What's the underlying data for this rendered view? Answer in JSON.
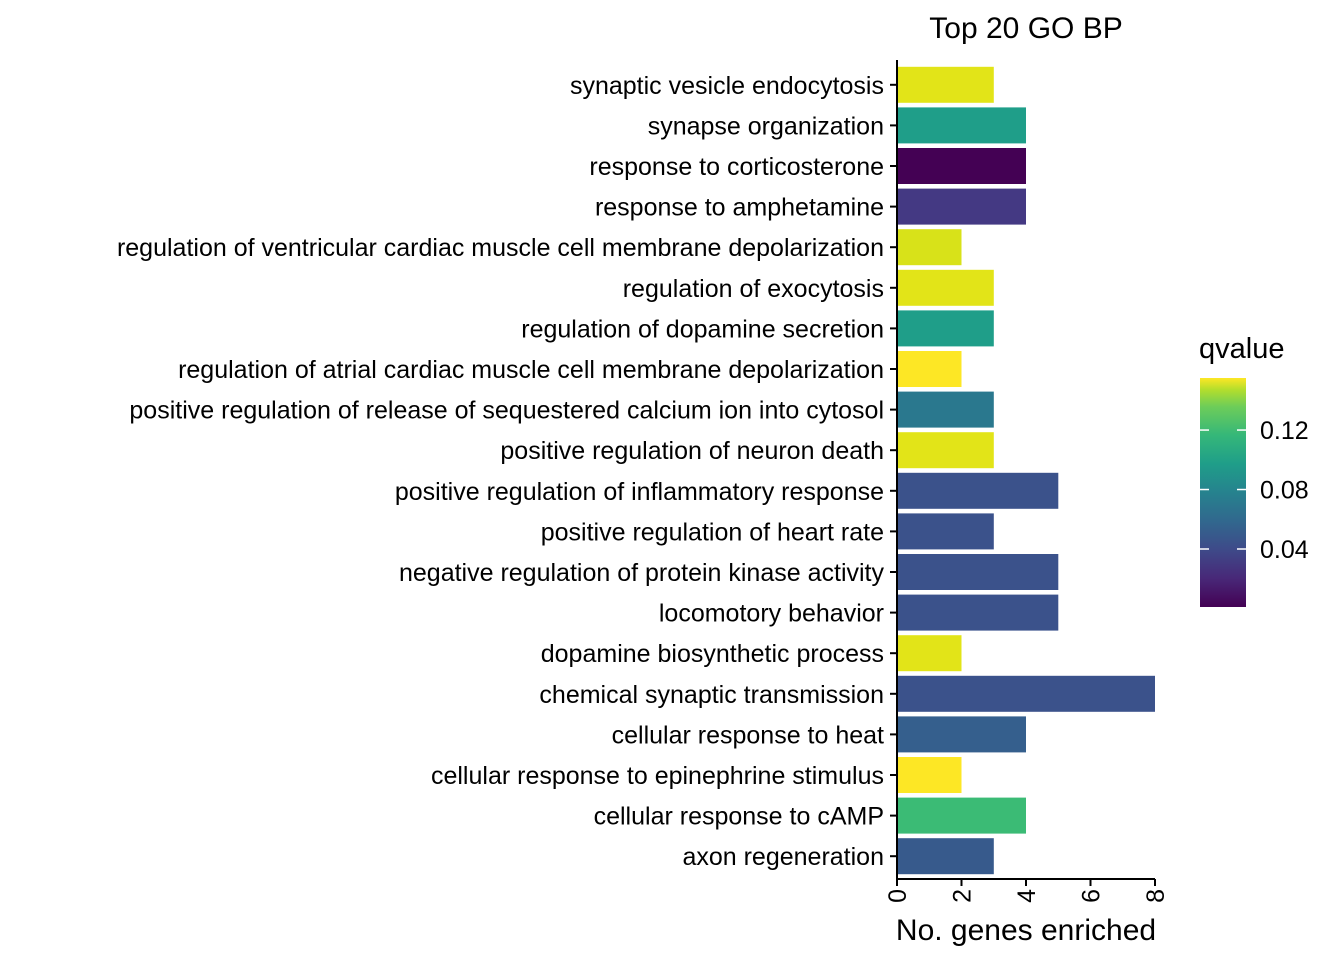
{
  "chart_data": {
    "type": "bar",
    "orientation": "horizontal",
    "title": "Top 20 GO BP",
    "xlabel": "No. genes enriched",
    "ylabel": "",
    "xlim": [
      0,
      8
    ],
    "x_ticks": [
      0,
      2,
      4,
      6,
      8
    ],
    "grid": false,
    "legend": {
      "title": "qvalue",
      "placement": "right",
      "type": "continuous-colorbar",
      "colormap": "viridis",
      "range": [
        0.001,
        0.155
      ],
      "ticks": [
        0.04,
        0.08,
        0.12
      ],
      "tick_labels": [
        "0.04",
        "0.08",
        "0.12"
      ]
    },
    "categories": [
      "synaptic vesicle endocytosis",
      "synapse organization",
      "response to corticosterone",
      "response to amphetamine",
      "regulation of ventricular cardiac muscle cell membrane depolarization",
      "regulation of exocytosis",
      "regulation of dopamine secretion",
      "regulation of atrial cardiac muscle cell membrane depolarization",
      "positive regulation of release of sequestered calcium ion into cytosol",
      "positive regulation of neuron death",
      "positive regulation of inflammatory response",
      "positive regulation of heart rate",
      "negative regulation of protein kinase activity",
      "locomotory behavior",
      "dopamine biosynthetic process",
      "chemical synaptic transmission",
      "cellular response to heat",
      "cellular response to epinephrine stimulus",
      "cellular response to cAMP",
      "axon regeneration"
    ],
    "values": [
      3,
      4,
      4,
      4,
      2,
      3,
      3,
      2,
      3,
      3,
      5,
      3,
      5,
      5,
      2,
      8,
      4,
      2,
      4,
      3
    ],
    "color_values": [
      0.148,
      0.085,
      0.002,
      0.025,
      0.148,
      0.148,
      0.088,
      0.155,
      0.068,
      0.148,
      0.04,
      0.04,
      0.04,
      0.04,
      0.148,
      0.04,
      0.055,
      0.155,
      0.112,
      0.045
    ],
    "colors": [
      "#E2E418",
      "#1F9E89",
      "#440154",
      "#443983",
      "#D8E219",
      "#E2E418",
      "#1F9E89",
      "#FDE725",
      "#2A788E",
      "#E2E418",
      "#3B528B",
      "#3B528B",
      "#3B528B",
      "#3B528B",
      "#E2E418",
      "#3B528B",
      "#355F8D",
      "#FDE725",
      "#3BBB75",
      "#375A8C"
    ]
  }
}
